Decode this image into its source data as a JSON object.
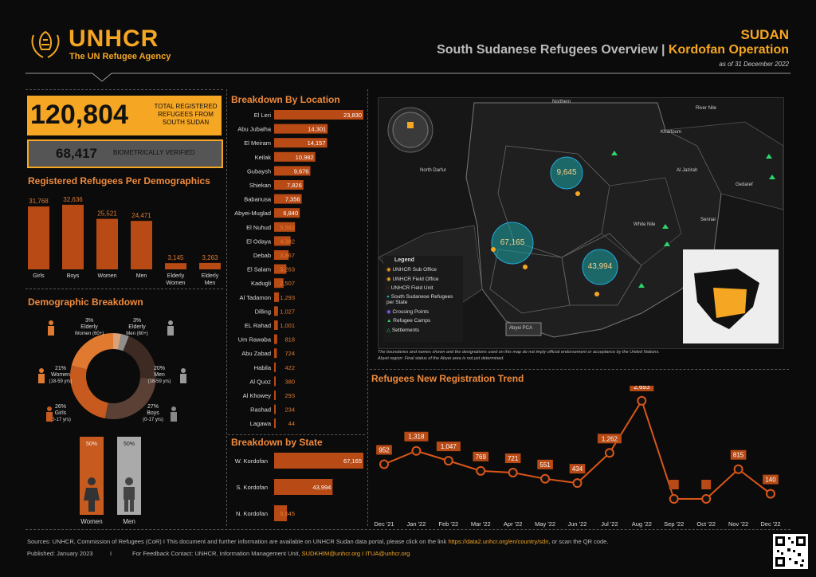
{
  "header": {
    "org_name": "UNHCR",
    "org_tagline": "The UN Refugee Agency",
    "country": "SUDAN",
    "title_main": "South Sudanese Refugees Overview",
    "title_sep": " | ",
    "title_op": "Kordofan Operation",
    "as_of": "as of 31 December 2022"
  },
  "kpi": {
    "total_value": "120,804",
    "total_label": "TOTAL REGISTERED REFUGEES FROM SOUTH SUDAN",
    "verified_value": "68,417",
    "verified_label": "BIOMETRICALLY VERIFIED"
  },
  "sections": {
    "demographics": "Registered Refugees Per Demographics",
    "demo_breakdown": "Demographic Breakdown",
    "by_location": "Breakdown By Location",
    "by_state": "Breakdown by State",
    "trend": "Refugees New Registration Trend"
  },
  "donut": {
    "segments": [
      {
        "label": "Elderly Women (60+)",
        "pct": "3%",
        "value": 3,
        "color": "#d9a27a"
      },
      {
        "label": "Elderly Men (60+)",
        "pct": "3%",
        "value": 3,
        "color": "#8e8e8e"
      },
      {
        "label": "Men (18-59 yrs)",
        "pct": "20%",
        "value": 20,
        "color": "#3d2b23"
      },
      {
        "label": "Boys (0-17 yrs)",
        "pct": "27%",
        "value": 27,
        "color": "#5a4035"
      },
      {
        "label": "Girls (0-17 yrs)",
        "pct": "26%",
        "value": 26,
        "color": "#c75a1e"
      },
      {
        "label": "Women (18-59 yrs)",
        "pct": "21%",
        "value": 21,
        "color": "#e07a30"
      }
    ],
    "labels": {
      "ew_pct": "3%",
      "ew_1": "Elderly",
      "ew_2": "Women (60+)",
      "em_pct": "3%",
      "em_1": "Elderly",
      "em_2": "Men (60+)",
      "w_pct": "21%",
      "w_1": "Women",
      "w_2": "(18-59 yrs)",
      "m_pct": "20%",
      "m_1": "Men",
      "m_2": "(18-59 yrs)",
      "g_pct": "26%",
      "g_1": "Girls",
      "g_2": "(0-17 yrs)",
      "b_pct": "27%",
      "b_1": "Boys",
      "b_2": "(0-17 yrs)"
    },
    "gender": {
      "women_pct": "50%",
      "men_pct": "50%",
      "women_label": "Women",
      "men_label": "Men"
    }
  },
  "map": {
    "legend_title": "Legend",
    "legend_items": [
      "UNHCR Sub Office",
      "UNHCR Field Office",
      "UNHCR Field Unit",
      "South Sudanese Refugees per State",
      "Crossing Points",
      "Refugee Camps",
      "Settlements"
    ],
    "bubbles": [
      "9,645",
      "67,165",
      "43,994"
    ],
    "place_labels": [
      "Northern",
      "River Nile",
      "North Darfur",
      "Khartoum",
      "Al Jazirah",
      "Gedaref",
      "Sennar",
      "White Nile",
      "Abyei PCA"
    ],
    "disclaimer_1": "The boundaries and names shown and the designations used on this map do not imply official endorsement or acceptance by the United Nations.",
    "disclaimer_2": "Abyei region: Final status of the Abyei area is not yet determined."
  },
  "footer": {
    "sources": "Sources: UNHCR, Commission of Refugees (CoR) I This document and further information are available on UNHCR Sudan data portal, please click on the link",
    "link": "https://data2.unhcr.org/en/country/sdn",
    "sources_end": ", or scan the QR code.",
    "published": "Published: January 2023",
    "sep": "I",
    "feedback": "For Feedback Contact: UNHCR, Information Management Unit,",
    "emails": "SUDKHIM@unhcr.org I ITUA@unhcr.org"
  },
  "colors": {
    "accent": "#f5a623",
    "bar": "#b84a15",
    "line": "#d9561a",
    "bg": "#0b0b0b"
  },
  "chart_data": [
    {
      "type": "bar",
      "title": "Registered Refugees Per Demographics",
      "categories": [
        "Girls",
        "Boys",
        "Women",
        "Men",
        "Elderly Women",
        "Elderly Men"
      ],
      "category_lines": [
        [
          "Girls"
        ],
        [
          "Boys"
        ],
        [
          "Women"
        ],
        [
          "Men"
        ],
        [
          "Elderly",
          "Women"
        ],
        [
          "Elderly",
          "Men"
        ]
      ],
      "values": [
        31768,
        32636,
        25521,
        24471,
        3145,
        3263
      ],
      "labels": [
        "31,768",
        "32,636",
        "25,521",
        "24,471",
        "3,145",
        "3,263"
      ],
      "ylim": [
        0,
        33000
      ]
    },
    {
      "type": "bar",
      "title": "Breakdown By Location",
      "orientation": "horizontal",
      "categories": [
        "El Leri",
        "Abu Jubaiha",
        "El Meiram",
        "Keilak",
        "Gubaysh",
        "Shiekan",
        "Babanusa",
        "Abyei-Muglad",
        "El Nuhud",
        "El Odaya",
        "Debab",
        "El Salam",
        "Kadugli",
        "Al Tadamon",
        "Dilling",
        "EL Rahad",
        "Um Rawaba",
        "Abu Zabad",
        "Habila",
        "Al Quoz",
        "Al Khowey",
        "Rashad",
        "Lagawa"
      ],
      "values": [
        23830,
        14301,
        14157,
        10982,
        9676,
        7826,
        7356,
        6840,
        5582,
        4382,
        3867,
        3263,
        2507,
        1293,
        1027,
        1001,
        818,
        724,
        422,
        380,
        293,
        234,
        44
      ],
      "labels": [
        "23,830",
        "14,301",
        "14,157",
        "10,982",
        "9,676",
        "7,826",
        "7,356",
        "6,840",
        "5,582",
        "4,382",
        "3,867",
        "3,263",
        "2,507",
        "1,293",
        "1,027",
        "1,001",
        "818",
        "724",
        "422",
        "380",
        "293",
        "234",
        "44"
      ]
    },
    {
      "type": "bar",
      "title": "Breakdown by State",
      "orientation": "horizontal",
      "categories": [
        "W. Kordofan",
        "S. Kordofan",
        "N. Kordofan"
      ],
      "values": [
        67165,
        43994,
        9645
      ],
      "labels": [
        "67,165",
        "43,994",
        "9,645"
      ]
    },
    {
      "type": "line",
      "title": "Refugees New Registration Trend",
      "x": [
        "Dec '21",
        "Jan '22",
        "Feb '22",
        "Mar '22",
        "Apr '22",
        "May '22",
        "Jun '22",
        "Jul '22",
        "Aug '22",
        "Sep '22",
        "Oct '22",
        "Nov '22",
        "Dec '22"
      ],
      "values": [
        952,
        1318,
        1047,
        769,
        721,
        551,
        434,
        1262,
        2693,
        0,
        0,
        815,
        140
      ],
      "labels": [
        "952",
        "1,318",
        "1,047",
        "769",
        "721",
        "551",
        "434",
        "1,262",
        "2,693",
        "",
        "",
        "815",
        "140"
      ],
      "ylim": [
        0,
        2800
      ]
    }
  ]
}
